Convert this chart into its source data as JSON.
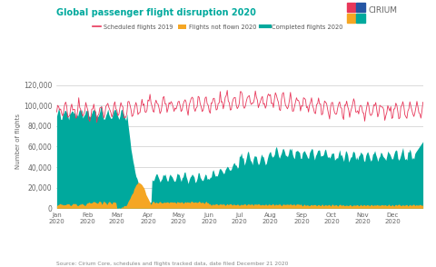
{
  "title": "Global passenger flight disruption 2020",
  "title_color": "#00a99d",
  "ylabel": "Number of flights",
  "source_text": "Source: Cirium Core, schedules and flights tracked data, date filed December 21 2020",
  "legend_items": [
    "Scheduled flights 2019",
    "Flights not flown 2020",
    "Completed flights 2020"
  ],
  "legend_colors": [
    "#e8375a",
    "#f5a623",
    "#00a99d"
  ],
  "bg_color": "#ffffff",
  "yticks": [
    0,
    20000,
    40000,
    60000,
    80000,
    100000,
    120000
  ],
  "ylim": [
    0,
    130000
  ],
  "xtick_labels": [
    "Jan\n2020",
    "Feb\n2020",
    "Mar\n2020",
    "Apr\n2020",
    "May\n2020",
    "Jun\n2020",
    "Jul\n2020",
    "Aug\n2020",
    "Sep\n2020",
    "Oct\n2020",
    "Nov\n2020",
    "Dec\n2020"
  ],
  "cirium_logo_text": "CIRIUM",
  "logo_colors": [
    [
      "#e8375a",
      "#2455a4"
    ],
    [
      "#f5a623",
      "#00a99d"
    ]
  ]
}
